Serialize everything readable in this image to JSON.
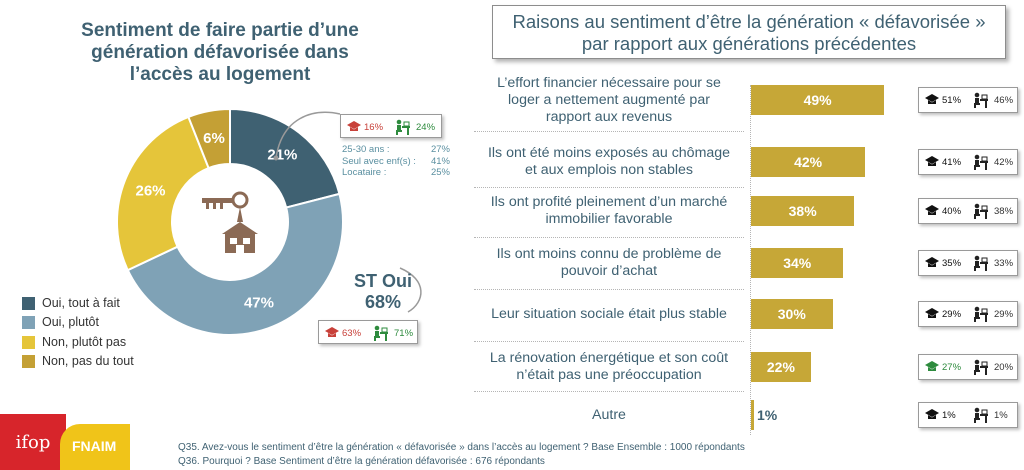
{
  "left_panel": {
    "title_lines": [
      "Sentiment de faire partie d’une",
      "génération défavorisée dans",
      "l’accès au logement"
    ],
    "st_label": "ST Oui",
    "st_value": "68%",
    "st_cmp": {
      "v1": "63%",
      "v2": "71%"
    },
    "top_cmp": {
      "v1": "16%",
      "v2": "24%"
    },
    "details": [
      {
        "label": "25-30 ans :",
        "value": "27%"
      },
      {
        "label": "Seul avec enf(s) :",
        "value": "41%"
      },
      {
        "label": "Locataire :",
        "value": "25%"
      }
    ]
  },
  "right_panel": {
    "title_lines": [
      "Raisons au sentiment d’être la génération « défavorisée »",
      "par rapport aux générations précédentes"
    ]
  },
  "chart_data": [
    {
      "type": "pie",
      "variant": "donut",
      "categories": [
        "Oui, tout à fait",
        "Oui, plutôt",
        "Non, plutôt pas",
        "Non, pas du tout"
      ],
      "values": [
        21,
        47,
        26,
        6
      ],
      "labels": [
        "21%",
        "47%",
        "26%",
        "6%"
      ],
      "colors": [
        "#3f6172",
        "#7fa2b6",
        "#e5c53a",
        "#c4a035"
      ],
      "legend_position": "bottom-left"
    },
    {
      "type": "bar",
      "orientation": "horizontal",
      "categories": [
        [
          "L’effort financier nécessaire pour se",
          "loger a nettement augmenté par",
          "rapport aux revenus"
        ],
        [
          "Ils ont été moins exposés au chômage",
          "et aux emplois non stables"
        ],
        [
          "Ils ont profité pleinement d’un marché",
          "immobilier favorable"
        ],
        [
          "Ils ont moins connu de problème de",
          "pouvoir d’achat"
        ],
        [
          "Leur situation sociale était plus stable"
        ],
        [
          "La rénovation énergétique et son coût",
          "n’était pas une préoccupation"
        ],
        [
          "Autre"
        ]
      ],
      "values": [
        49,
        42,
        38,
        34,
        30,
        22,
        1
      ],
      "labels": [
        "49%",
        "42%",
        "38%",
        "34%",
        "30%",
        "22%",
        "1%"
      ],
      "xlim": [
        0,
        57
      ],
      "color": "#c6a737",
      "comparisons": [
        {
          "v1": "51%",
          "v2": "46%",
          "v1_color": "#111111"
        },
        {
          "v1": "41%",
          "v2": "42%",
          "v1_color": "#111111"
        },
        {
          "v1": "40%",
          "v2": "38%",
          "v1_color": "#111111"
        },
        {
          "v1": "35%",
          "v2": "33%",
          "v1_color": "#111111"
        },
        {
          "v1": "29%",
          "v2": "29%",
          "v1_color": "#111111"
        },
        {
          "v1": "27%",
          "v2": "20%",
          "v1_color": "#2e8b3e"
        },
        {
          "v1": "1%",
          "v2": "1%",
          "v1_color": "#111111"
        }
      ]
    }
  ],
  "footer": {
    "brand_left": "ifop",
    "brand_right": "FNAIM",
    "notes": [
      "Q35. Avez-vous le sentiment d’être la génération « défavorisée » dans l’accès au logement ? Base Ensemble : 1000 répondants",
      "Q36. Pourquoi ? Base Sentiment d’être la génération défavorisée : 676 répondants"
    ]
  },
  "colors": {
    "title": "#3f6172",
    "red": "#c8413a",
    "green": "#2e8b3e",
    "teal_text": "#5a8fa0"
  }
}
